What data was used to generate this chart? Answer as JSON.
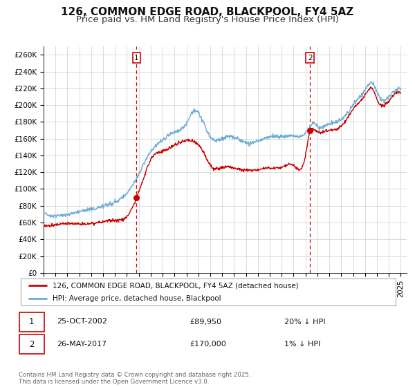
{
  "title": "126, COMMON EDGE ROAD, BLACKPOOL, FY4 5AZ",
  "subtitle": "Price paid vs. HM Land Registry's House Price Index (HPI)",
  "xlim": [
    1995,
    2025.5
  ],
  "ylim": [
    0,
    270000
  ],
  "yticks": [
    0,
    20000,
    40000,
    60000,
    80000,
    100000,
    120000,
    140000,
    160000,
    180000,
    200000,
    220000,
    240000,
    260000
  ],
  "ytick_labels": [
    "£0",
    "£20K",
    "£40K",
    "£60K",
    "£80K",
    "£100K",
    "£120K",
    "£140K",
    "£160K",
    "£180K",
    "£200K",
    "£220K",
    "£240K",
    "£260K"
  ],
  "hpi_color": "#6baed6",
  "price_color": "#cc0000",
  "marker1_x": 2002.81,
  "marker1_y": 89950,
  "marker2_x": 2017.38,
  "marker2_y": 170000,
  "vline1_x": 2002.81,
  "vline2_x": 2017.38,
  "legend_line1": "126, COMMON EDGE ROAD, BLACKPOOL, FY4 5AZ (detached house)",
  "legend_line2": "HPI: Average price, detached house, Blackpool",
  "annotation1_date": "25-OCT-2002",
  "annotation1_price": "£89,950",
  "annotation1_hpi": "20% ↓ HPI",
  "annotation2_date": "26-MAY-2017",
  "annotation2_price": "£170,000",
  "annotation2_hpi": "1% ↓ HPI",
  "footnote": "Contains HM Land Registry data © Crown copyright and database right 2025.\nThis data is licensed under the Open Government Licence v3.0.",
  "background_color": "#ffffff",
  "grid_color": "#cccccc",
  "title_fontsize": 11,
  "subtitle_fontsize": 9.5,
  "hpi_key_x": [
    1995.0,
    1996.0,
    1997.0,
    1998.0,
    1999.0,
    2000.0,
    2001.0,
    2002.0,
    2003.0,
    2004.0,
    2005.0,
    2006.0,
    2007.0,
    2007.6,
    2008.5,
    2009.0,
    2010.0,
    2011.0,
    2012.0,
    2013.0,
    2014.0,
    2015.0,
    2016.0,
    2017.0,
    2017.6,
    2018.0,
    2019.0,
    2020.0,
    2021.0,
    2022.0,
    2022.7,
    2023.0,
    2024.0,
    2025.0
  ],
  "hpi_key_y": [
    72000,
    68000,
    70000,
    73000,
    76000,
    80000,
    85000,
    95000,
    118000,
    145000,
    158000,
    168000,
    178000,
    193000,
    177000,
    162000,
    160000,
    162000,
    155000,
    157000,
    162000,
    163000,
    163000,
    167000,
    178000,
    175000,
    178000,
    183000,
    200000,
    218000,
    225000,
    215000,
    210000,
    220000
  ],
  "price_key_x": [
    1995.0,
    1996.0,
    1997.0,
    1998.0,
    1999.0,
    2000.0,
    2001.0,
    2002.0,
    2002.81,
    2003.2,
    2004.0,
    2005.0,
    2006.0,
    2007.0,
    2007.6,
    2008.5,
    2009.0,
    2010.0,
    2011.0,
    2012.0,
    2013.0,
    2014.0,
    2015.0,
    2016.0,
    2017.0,
    2017.38,
    2017.6,
    2018.0,
    2019.0,
    2020.0,
    2021.0,
    2022.0,
    2022.7,
    2023.0,
    2024.0,
    2025.0
  ],
  "price_key_y": [
    57000,
    57000,
    59000,
    58000,
    59000,
    61000,
    63000,
    67000,
    89950,
    105000,
    135000,
    145000,
    152000,
    158000,
    157000,
    142000,
    128000,
    126000,
    125000,
    122000,
    123000,
    125000,
    126000,
    128000,
    140000,
    170000,
    172000,
    168000,
    170000,
    175000,
    195000,
    212000,
    218000,
    207000,
    205000,
    215000
  ]
}
